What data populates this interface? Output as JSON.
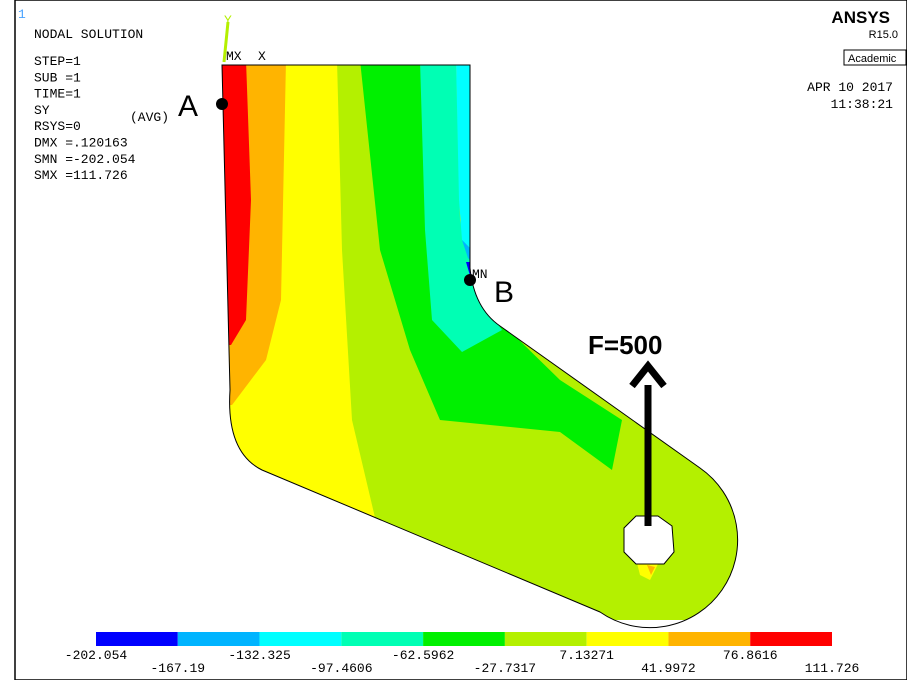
{
  "frame_number": "1",
  "info": {
    "title": "NODAL SOLUTION",
    "lines": [
      "STEP=1",
      "SUB =1",
      "TIME=1",
      "SY",
      "RSYS=0",
      "DMX =.120163",
      "SMN =-202.054",
      "SMX =111.726"
    ],
    "avg": "(AVG)"
  },
  "brand": {
    "name": "ANSYS",
    "release": "R15.0",
    "edition": "Academic"
  },
  "timestamp": {
    "date": "APR 10 2017",
    "time": "11:38:21"
  },
  "triad": {
    "y": "Y",
    "x": "X",
    "mx": "MX"
  },
  "annotations": {
    "point_a": "A",
    "point_b": "B",
    "min_marker": "MN",
    "force": "F=500"
  },
  "legend": {
    "colors": [
      "#0000ff",
      "#00b4ff",
      "#00ffff",
      "#00ffb4",
      "#00f000",
      "#b4f000",
      "#ffff00",
      "#ffb400",
      "#ff0000"
    ],
    "labels": [
      "-202.054",
      "-167.19",
      "-132.325",
      "-97.4606",
      "-62.5962",
      "-27.7317",
      "7.13271",
      "41.9972",
      "76.8616",
      "111.726"
    ]
  }
}
